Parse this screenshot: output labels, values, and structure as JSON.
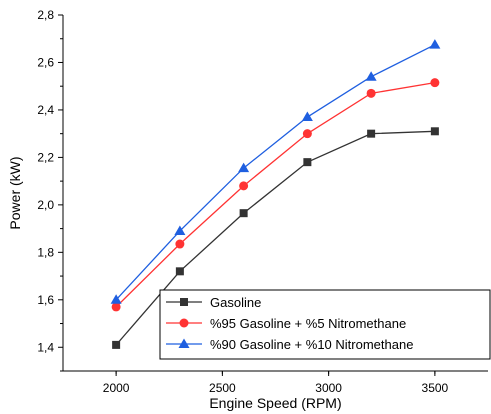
{
  "chart_data": {
    "type": "line",
    "title": "",
    "xlabel": "Engine Speed (RPM)",
    "ylabel": "Power (kW)",
    "xlim": [
      1750,
      3750
    ],
    "ylim": [
      1.3,
      2.8
    ],
    "x_ticks": [
      2000,
      2500,
      3000,
      3500
    ],
    "x_tick_labels": [
      "2000",
      "2500",
      "3000",
      "3500"
    ],
    "y_ticks": [
      1.4,
      1.6,
      1.8,
      2.0,
      2.2,
      2.4,
      2.6,
      2.8
    ],
    "y_tick_labels": [
      "1,4",
      "1,6",
      "1,8",
      "2,0",
      "2,2",
      "2,4",
      "2,6",
      "2,8"
    ],
    "grid": false,
    "legend_position": "bottom-right",
    "x": [
      2000,
      2300,
      2600,
      2900,
      3200,
      3500
    ],
    "series": [
      {
        "name": "Gasoline",
        "values": [
          1.41,
          1.72,
          1.965,
          2.18,
          2.3,
          2.31
        ],
        "color": "#333333",
        "marker": "square"
      },
      {
        "name": "%95 Gasoline + %5 Nitromethane",
        "values": [
          1.57,
          1.835,
          2.08,
          2.3,
          2.47,
          2.515
        ],
        "color": "#ff3333",
        "marker": "circle"
      },
      {
        "name": "%90 Gasoline + %10 Nitromethane",
        "values": [
          1.6,
          1.89,
          2.155,
          2.37,
          2.54,
          2.675
        ],
        "color": "#1f5fe0",
        "marker": "triangle"
      }
    ]
  }
}
